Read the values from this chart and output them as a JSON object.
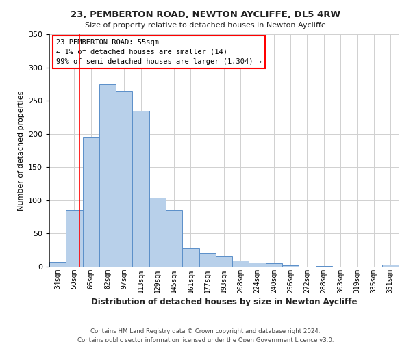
{
  "title": "23, PEMBERTON ROAD, NEWTON AYCLIFFE, DL5 4RW",
  "subtitle": "Size of property relative to detached houses in Newton Aycliffe",
  "xlabel": "Distribution of detached houses by size in Newton Aycliffe",
  "ylabel": "Number of detached properties",
  "bar_labels": [
    "34sqm",
    "50sqm",
    "66sqm",
    "82sqm",
    "97sqm",
    "113sqm",
    "129sqm",
    "145sqm",
    "161sqm",
    "177sqm",
    "193sqm",
    "208sqm",
    "224sqm",
    "240sqm",
    "256sqm",
    "272sqm",
    "288sqm",
    "303sqm",
    "319sqm",
    "335sqm",
    "351sqm"
  ],
  "bar_heights": [
    7,
    85,
    195,
    275,
    265,
    235,
    104,
    85,
    28,
    21,
    16,
    9,
    6,
    5,
    2,
    0,
    1,
    0,
    0,
    0,
    3
  ],
  "bar_color": "#b8d0ea",
  "bar_edge_color": "#5b8fc9",
  "ylim": [
    0,
    350
  ],
  "yticks": [
    0,
    50,
    100,
    150,
    200,
    250,
    300,
    350
  ],
  "annotation_box_text_line1": "23 PEMBERTON ROAD: 55sqm",
  "annotation_box_text_line2": "← 1% of detached houses are smaller (14)",
  "annotation_box_text_line3": "99% of semi-detached houses are larger (1,304) →",
  "red_line_x": 1.3,
  "footer_line1": "Contains HM Land Registry data © Crown copyright and database right 2024.",
  "footer_line2": "Contains public sector information licensed under the Open Government Licence v3.0.",
  "background_color": "#ffffff",
  "grid_color": "#d0d0d0"
}
